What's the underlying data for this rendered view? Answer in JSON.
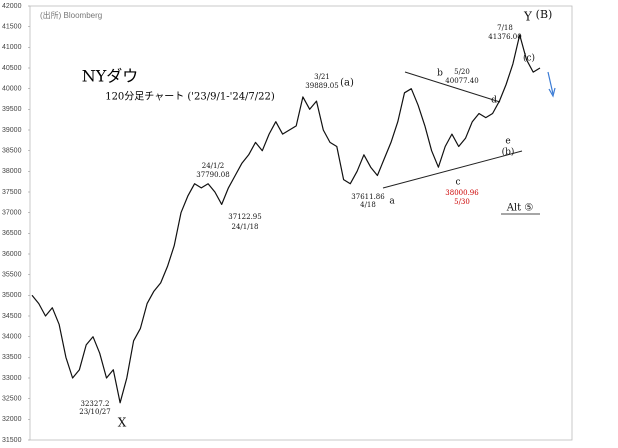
{
  "chart_data": {
    "type": "line",
    "title": "NYダウ",
    "subtitle": "120分足チャート ('23/9/1-'24/7/22)",
    "source": "(出所) Bloomberg",
    "color": "#111111",
    "ylim": [
      31500,
      42000
    ],
    "yticks": [
      31500,
      32000,
      32500,
      33000,
      33500,
      34000,
      34500,
      35000,
      35500,
      36000,
      36500,
      37000,
      37500,
      38000,
      38500,
      39000,
      39500,
      40000,
      40500,
      41000,
      41500,
      42000
    ],
    "values": [
      35000,
      34800,
      34500,
      34700,
      34300,
      33500,
      33000,
      33200,
      33800,
      34000,
      33600,
      33000,
      33200,
      32400,
      33000,
      33900,
      34200,
      34800,
      35100,
      35300,
      35700,
      36200,
      37000,
      37400,
      37700,
      37600,
      37700,
      37500,
      37200,
      37600,
      37900,
      38200,
      38400,
      38700,
      38500,
      38900,
      39200,
      38900,
      39000,
      39100,
      39800,
      39500,
      39700,
      39000,
      38700,
      38600,
      37800,
      37700,
      38000,
      38400,
      38100,
      37900,
      38300,
      38700,
      39200,
      39900,
      40000,
      39600,
      39100,
      38500,
      38100,
      38600,
      38900,
      38600,
      38800,
      39200,
      39400,
      39300,
      39400,
      39700,
      40100,
      40600,
      41300,
      40700,
      40400,
      40500
    ],
    "annotations": [
      {
        "text": "32327.2",
        "color": "#111111"
      },
      {
        "text": "23/10/27",
        "color": "#111111"
      },
      {
        "text": "X",
        "color": "#111111"
      },
      {
        "text": "24/1/2",
        "color": "#111111"
      },
      {
        "text": "37790.08",
        "color": "#111111"
      },
      {
        "text": "37122.95",
        "color": "#111111"
      },
      {
        "text": "24/1/18",
        "color": "#111111"
      },
      {
        "text": "3/21",
        "color": "#111111"
      },
      {
        "text": "39889.05",
        "color": "#111111"
      },
      {
        "text": "(a)",
        "color": "#111111"
      },
      {
        "text": "37611.86",
        "color": "#111111"
      },
      {
        "text": "4/18",
        "color": "#111111"
      },
      {
        "text": "a",
        "color": "#111111"
      },
      {
        "text": "b",
        "color": "#111111"
      },
      {
        "text": "5/20",
        "color": "#111111"
      },
      {
        "text": "40077.40",
        "color": "#111111"
      },
      {
        "text": "c",
        "color": "#111111"
      },
      {
        "text": "38000.96",
        "color": "#cc0000"
      },
      {
        "text": "5/30",
        "color": "#cc0000"
      },
      {
        "text": "d",
        "color": "#111111"
      },
      {
        "text": "e",
        "color": "#111111"
      },
      {
        "text": "(b)",
        "color": "#111111"
      },
      {
        "text": "(c)",
        "color": "#111111"
      },
      {
        "text": "7/18",
        "color": "#111111"
      },
      {
        "text": "41376.00",
        "color": "#111111"
      },
      {
        "text": "Y",
        "color": "#111111"
      },
      {
        "text": "(B)",
        "color": "#111111"
      },
      {
        "text": "Alt ⑤",
        "color": "#111111"
      }
    ]
  }
}
